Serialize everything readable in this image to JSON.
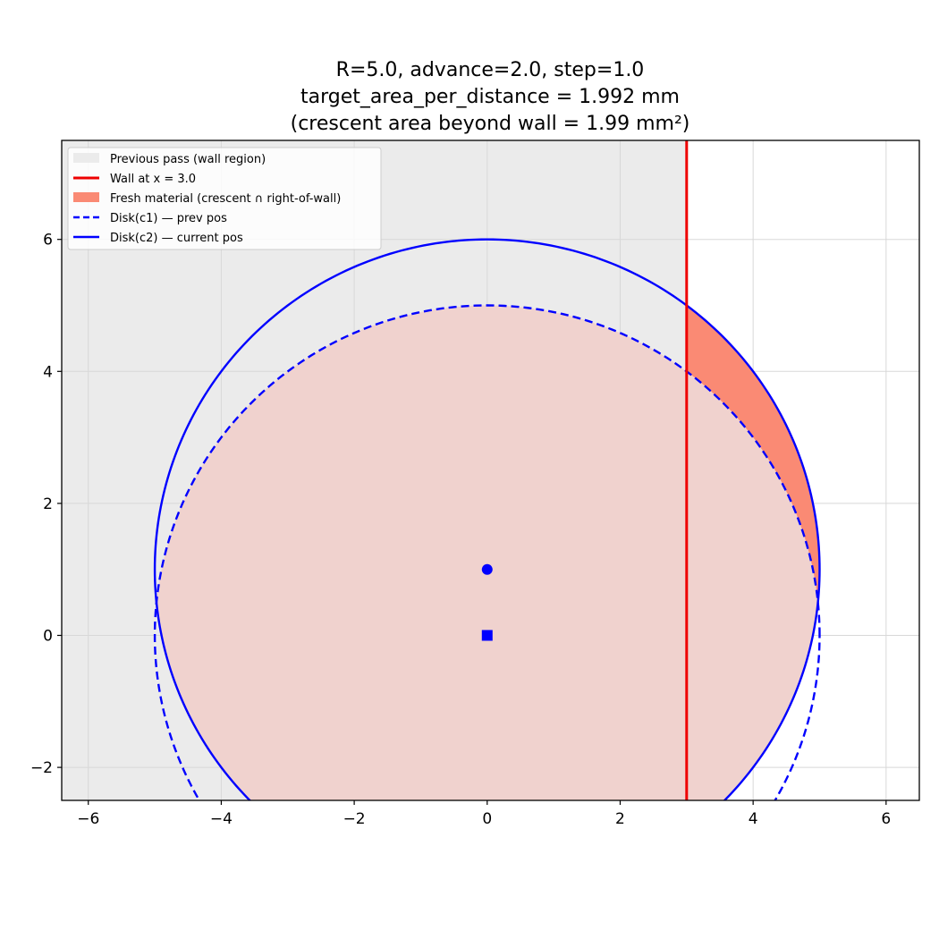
{
  "chart_data": {
    "type": "line",
    "title_lines": [
      "R=5.0, advance=2.0, step=1.0",
      "target_area_per_distance = 1.992 mm",
      "(crescent area beyond wall = 1.99 mm²)"
    ],
    "xlabel": "",
    "ylabel": "",
    "xlim": [
      -6.4,
      6.5
    ],
    "ylim": [
      -2.5,
      7.5
    ],
    "x_ticks": [
      -6,
      -4,
      -2,
      0,
      2,
      4,
      6
    ],
    "y_ticks": [
      -2,
      0,
      2,
      4,
      6
    ],
    "grid": true,
    "R": 5.0,
    "wall_x": 3.0,
    "c1": [
      0,
      0
    ],
    "c2": [
      0,
      1
    ],
    "crescent_area_beyond_wall": 1.99,
    "legend_position": "upper left",
    "legend": [
      {
        "key": "prev",
        "label": "Previous pass (wall region)"
      },
      {
        "key": "wall",
        "label": "Wall at x = 3.0"
      },
      {
        "key": "fresh",
        "label": "Fresh material (crescent ∩ right-of-wall)"
      },
      {
        "key": "disk1",
        "label": "Disk(c1) — prev pos"
      },
      {
        "key": "disk2",
        "label": "Disk(c2) — current pos"
      }
    ],
    "colors": {
      "previous_pass": "#ebebeb",
      "crescent_light": "#f0d2ce",
      "fresh": "#fa8a74",
      "wall": "#ee0000",
      "disk": "#0000ff",
      "grid": "#d8d8d8"
    }
  }
}
